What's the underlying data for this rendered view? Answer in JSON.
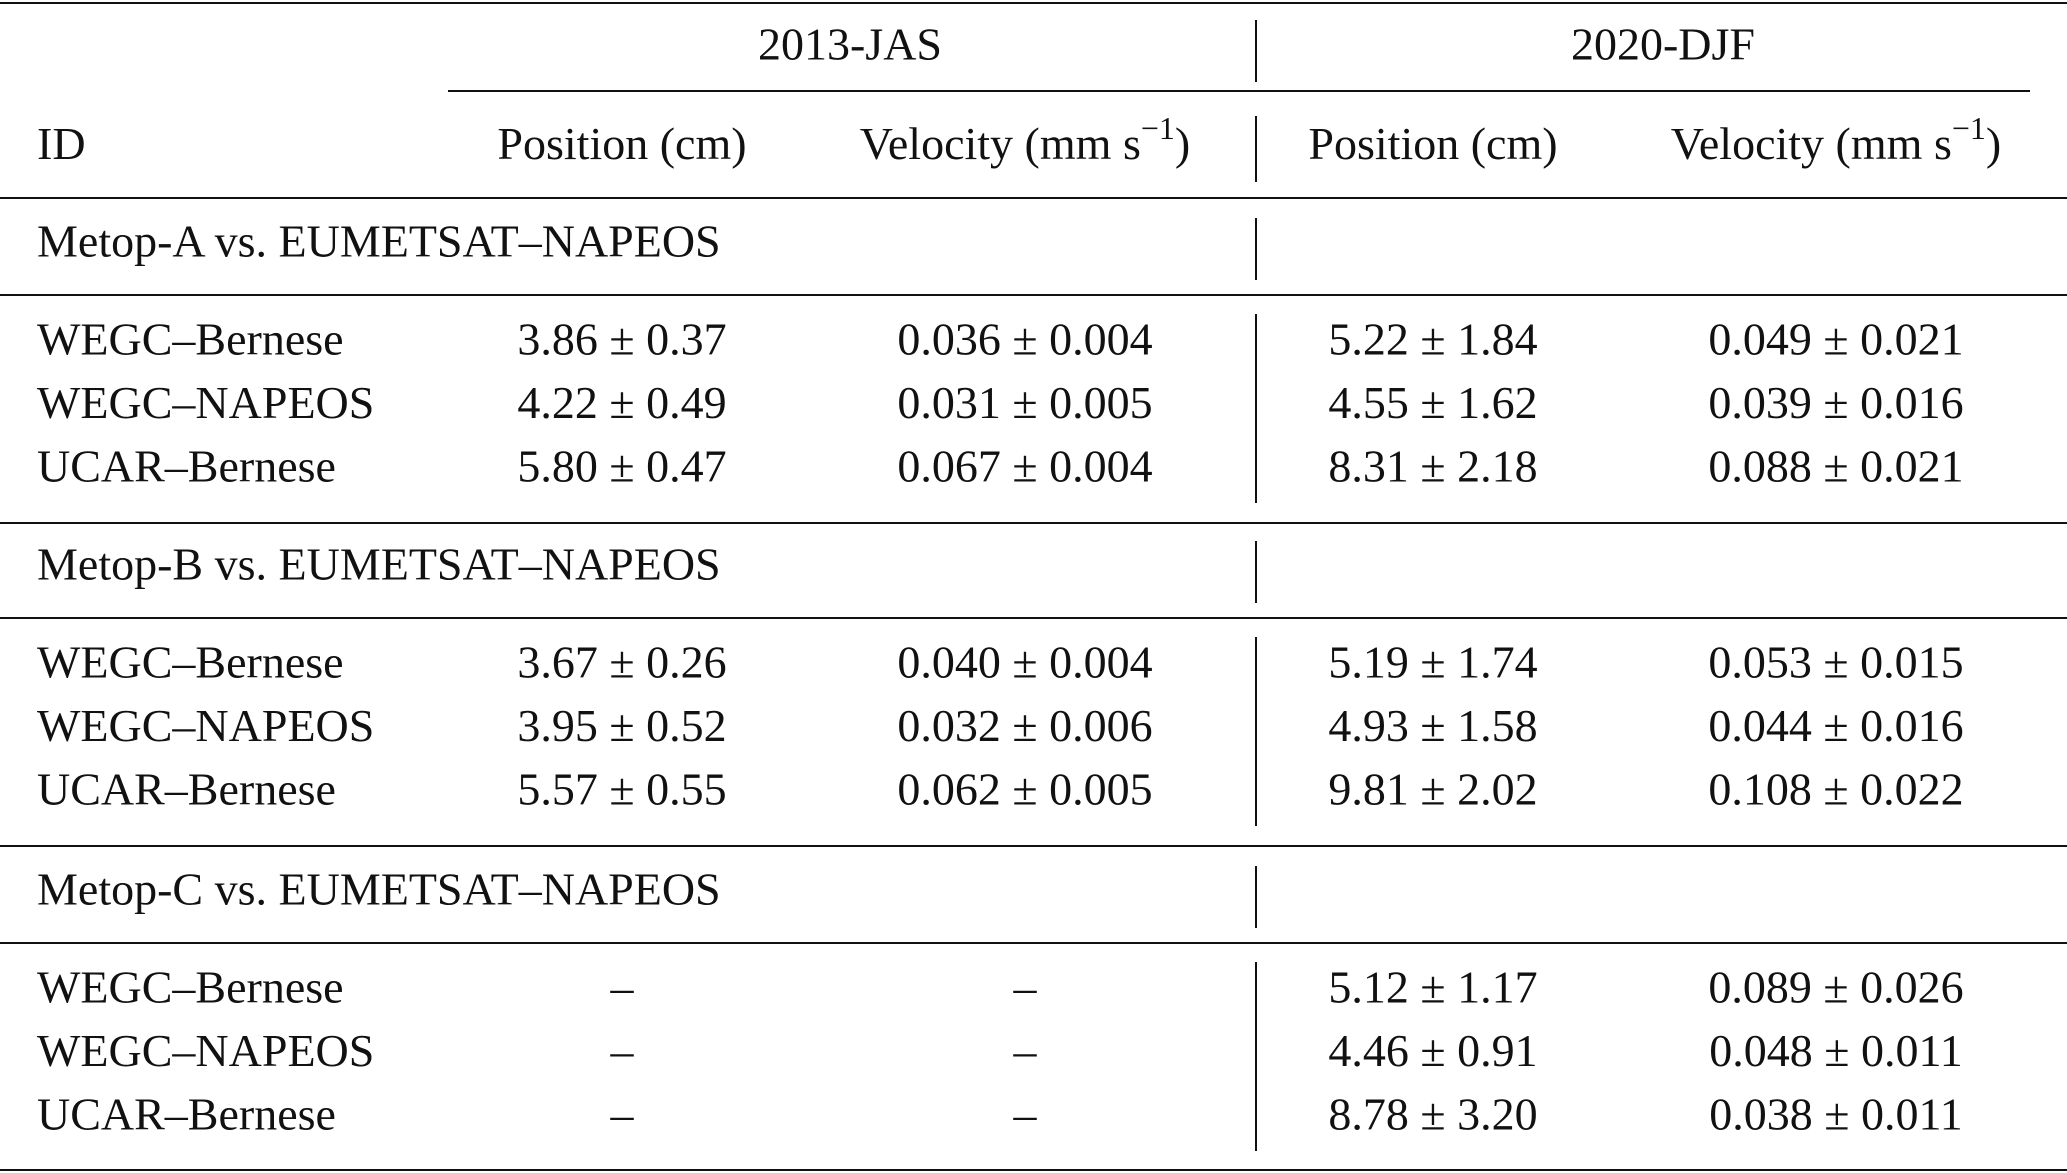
{
  "table": {
    "groups": [
      "2013-JAS",
      "2020-DJF"
    ],
    "columns": [
      {
        "text": "ID"
      },
      {
        "text": "Position (cm)"
      },
      {
        "text": "Velocity (mm s",
        "sup": "−1",
        "close": ")"
      },
      {
        "text": "Position (cm)"
      },
      {
        "text": "Velocity (mm s",
        "sup": "−1",
        "close": ")"
      }
    ],
    "sections": [
      {
        "title": "Metop-A vs. EUMETSAT–NAPEOS",
        "rows": [
          [
            "WEGC–Bernese",
            "3.86 ± 0.37",
            "0.036 ± 0.004",
            "5.22 ± 1.84",
            "0.049 ± 0.021"
          ],
          [
            "WEGC–NAPEOS",
            "4.22 ± 0.49",
            "0.031 ± 0.005",
            "4.55 ± 1.62",
            "0.039 ± 0.016"
          ],
          [
            "UCAR–Bernese",
            "5.80 ± 0.47",
            "0.067 ± 0.004",
            "8.31 ± 2.18",
            "0.088 ± 0.021"
          ]
        ]
      },
      {
        "title": "Metop-B vs. EUMETSAT–NAPEOS",
        "rows": [
          [
            "WEGC–Bernese",
            "3.67 ± 0.26",
            "0.040 ± 0.004",
            "5.19 ± 1.74",
            "0.053 ± 0.015"
          ],
          [
            "WEGC–NAPEOS",
            "3.95 ± 0.52",
            "0.032 ± 0.006",
            "4.93 ± 1.58",
            "0.044 ± 0.016"
          ],
          [
            "UCAR–Bernese",
            "5.57 ± 0.55",
            "0.062 ± 0.005",
            "9.81 ± 2.02",
            "0.108 ± 0.022"
          ]
        ]
      },
      {
        "title": "Metop-C vs. EUMETSAT–NAPEOS",
        "rows": [
          [
            "WEGC–Bernese",
            "–",
            "–",
            "5.12 ± 1.17",
            "0.089 ± 0.026"
          ],
          [
            "WEGC–NAPEOS",
            "–",
            "–",
            "4.46 ± 0.91",
            "0.048 ± 0.011"
          ],
          [
            "UCAR–Bernese",
            "–",
            "–",
            "8.78 ± 3.20",
            "0.038 ± 0.011"
          ]
        ]
      }
    ]
  }
}
